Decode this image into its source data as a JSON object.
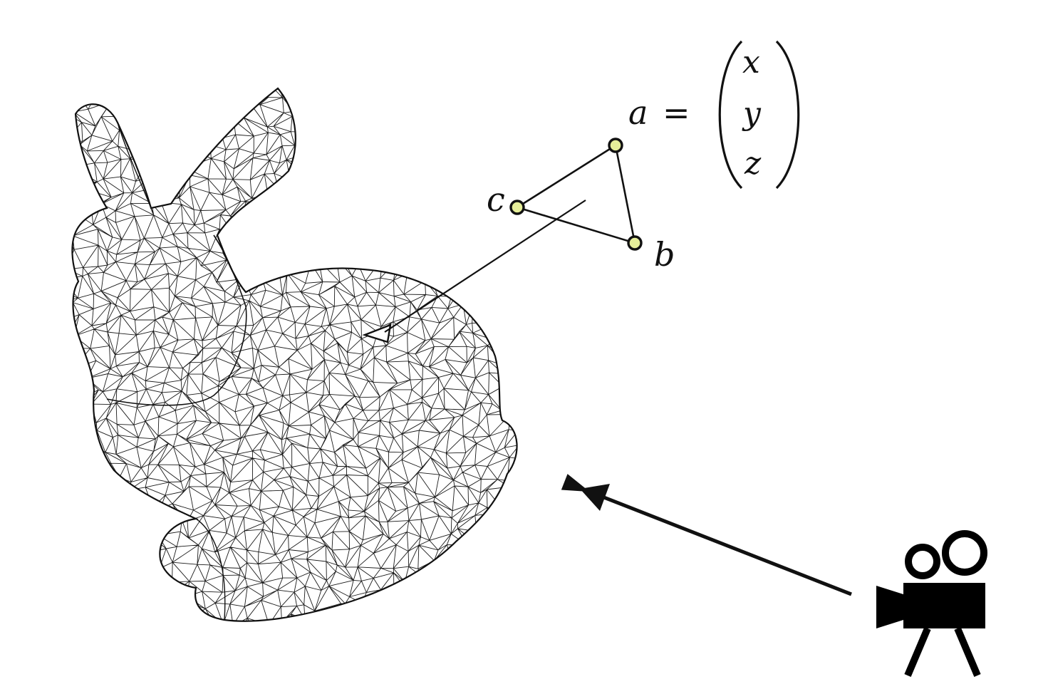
{
  "triangle": {
    "vertex_a_label": "a",
    "vertex_b_label": "b",
    "vertex_c_label": "c",
    "vertex_fill": "#e6ef9a"
  },
  "equation": {
    "lhs": "a",
    "equals": "=",
    "vector": [
      "x",
      "y",
      "z"
    ]
  },
  "icons": {
    "mesh": "bunny-wireframe-icon",
    "camera": "movie-camera-icon"
  },
  "colors": {
    "ink": "#111111",
    "background": "#ffffff"
  }
}
